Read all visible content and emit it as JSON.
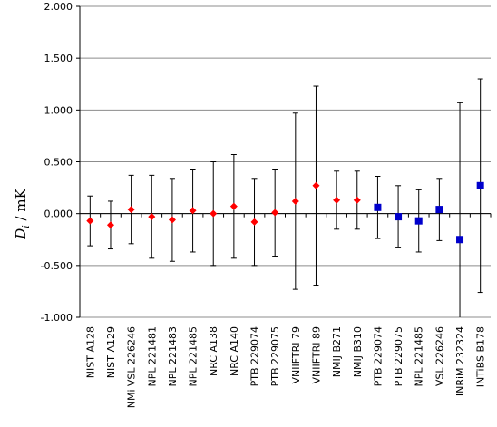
{
  "chart_data": {
    "type": "scatter",
    "ylabel_main": "D",
    "ylabel_sub": "i",
    "ylabel_unit": " / mK",
    "xlabel": "",
    "ylim": [
      -1.0,
      2.0
    ],
    "yticks": [
      -1.0,
      -0.5,
      0.0,
      0.5,
      1.0,
      1.5,
      2.0
    ],
    "ytick_labels": [
      "-1.000",
      "-0.500",
      "0.000",
      "0.500",
      "1.000",
      "1.500",
      "2.000"
    ],
    "grid": true,
    "categories": [
      "NIST A128",
      "NIST A129",
      "NMi-VSL 226246",
      "NPL 221481",
      "NPL 221483",
      "NPL 221485",
      "NRC A138",
      "NRC A140",
      "PTB 229074",
      "PTB 229075",
      "VNIIFTRI 79",
      "VNIIFTRI 89",
      "NMIJ B271",
      "NMIJ B310",
      "PTB 229074",
      "PTB 229075",
      "NPL 221485",
      "VSL 226246",
      "INRiM 232324",
      "INTiBS B178"
    ],
    "series": [
      {
        "marker": "diamond",
        "color": "#ff0000",
        "indices": [
          0,
          1,
          2,
          3,
          4,
          5,
          6,
          7,
          8,
          9,
          10,
          11,
          12,
          13
        ],
        "values": [
          -0.07,
          -0.11,
          0.04,
          -0.03,
          -0.06,
          0.03,
          0.0,
          0.07,
          -0.08,
          0.01,
          0.12,
          0.27,
          0.13,
          0.13
        ],
        "errors": [
          0.24,
          0.23,
          0.33,
          0.4,
          0.4,
          0.4,
          0.5,
          0.5,
          0.42,
          0.42,
          0.85,
          0.96,
          0.28,
          0.28
        ]
      },
      {
        "marker": "square",
        "color": "#0000cc",
        "indices": [
          14,
          15,
          16,
          17,
          18,
          19
        ],
        "values": [
          0.06,
          -0.03,
          -0.07,
          0.04,
          -0.25,
          0.27
        ],
        "errors": [
          0.3,
          0.3,
          0.3,
          0.3,
          1.32,
          1.03
        ]
      }
    ]
  }
}
